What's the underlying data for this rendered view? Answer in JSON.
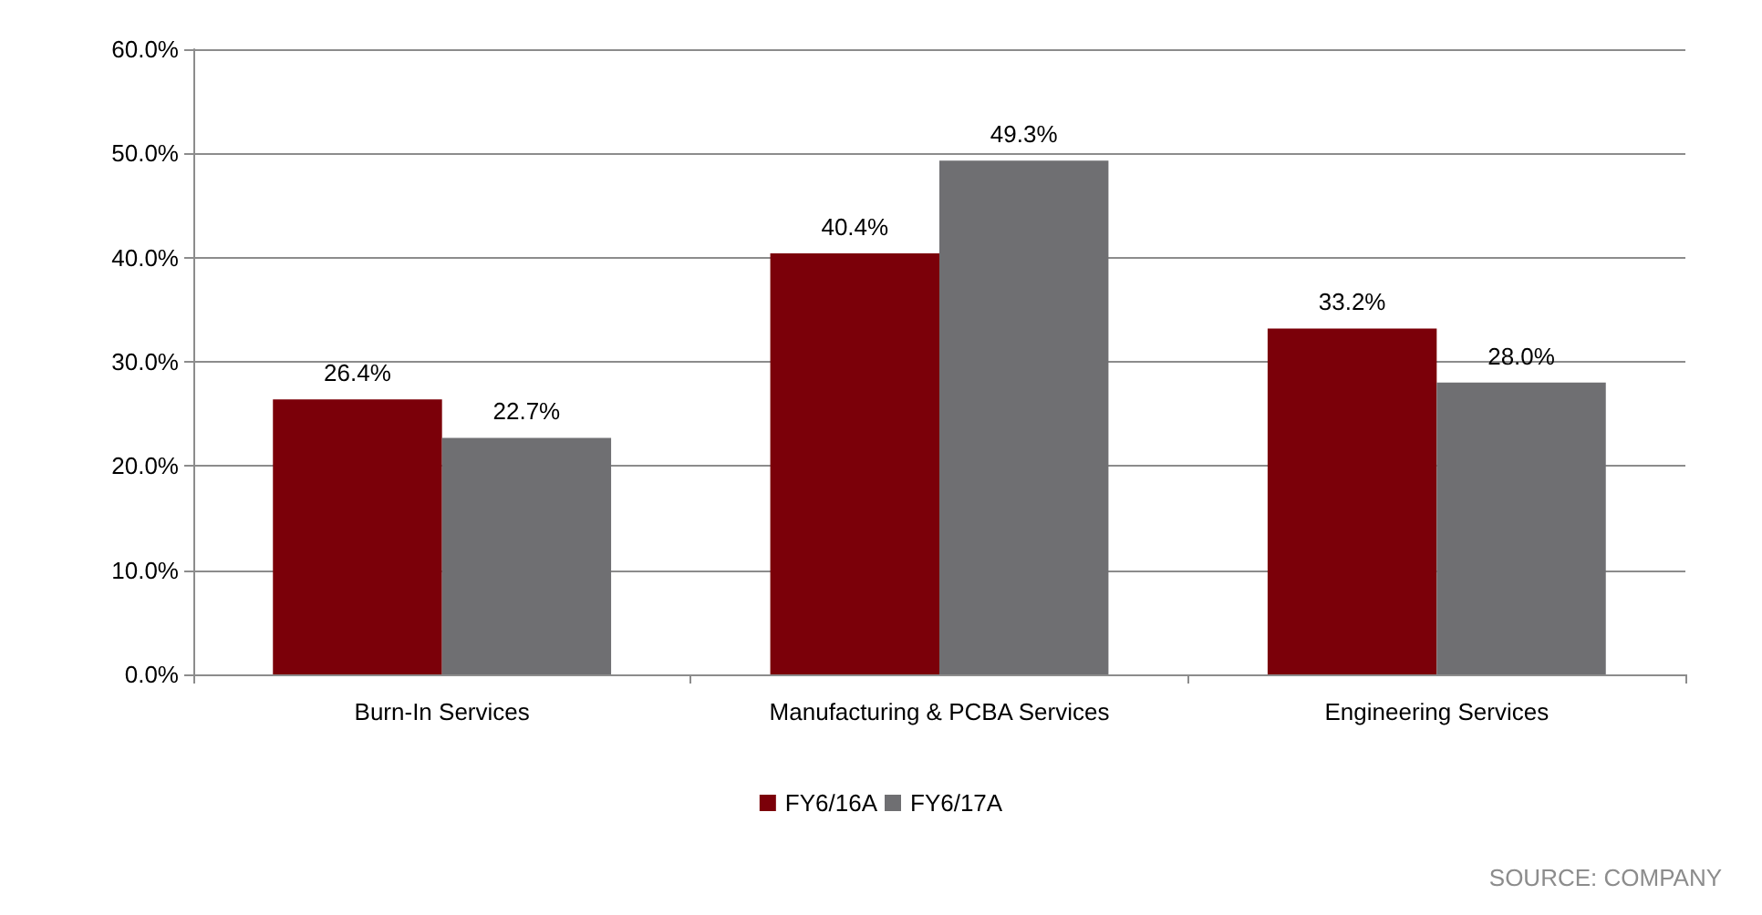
{
  "chart_data": {
    "type": "bar",
    "categories": [
      "Burn-In Services",
      "Manufacturing & PCBA Services",
      "Engineering Services"
    ],
    "series": [
      {
        "name": "FY6/16A",
        "color": "#7b0009",
        "values": [
          26.4,
          40.4,
          33.2
        ],
        "value_labels": [
          "26.4%",
          "40.4%",
          "33.2%"
        ]
      },
      {
        "name": "FY6/17A",
        "color": "#6f6f72",
        "values": [
          22.7,
          49.3,
          28.0
        ],
        "value_labels": [
          "22.7%",
          "49.3%",
          "28.0%"
        ]
      }
    ],
    "ylim": [
      0,
      60
    ],
    "yticks": [
      {
        "value": 0,
        "label": "0.0%"
      },
      {
        "value": 10,
        "label": "10.0%"
      },
      {
        "value": 20,
        "label": "20.0%"
      },
      {
        "value": 30,
        "label": "30.0%"
      },
      {
        "value": 40,
        "label": "40.0%"
      },
      {
        "value": 50,
        "label": "50.0%"
      },
      {
        "value": 60,
        "label": "60.0%"
      }
    ],
    "grid": "y",
    "legend": "bottom",
    "annotations": [
      "SOURCE: COMPANY"
    ]
  }
}
